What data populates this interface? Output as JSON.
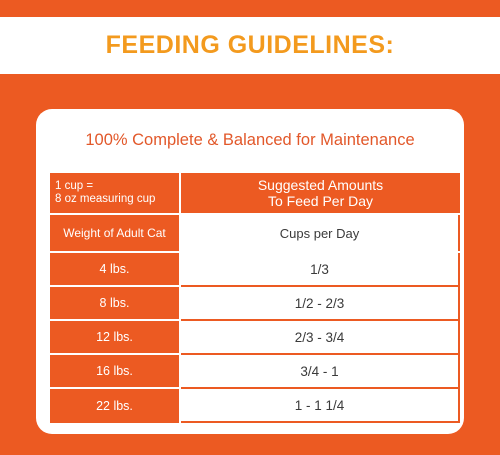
{
  "banner": {
    "title": "FEEDING GUIDELINES:"
  },
  "card": {
    "title": "100% Complete & Balanced for Maintenance"
  },
  "table": {
    "note_line1": "1 cup =",
    "note_line2": "8 oz measuring cup",
    "header_line1": "Suggested Amounts",
    "header_line2": "To Feed Per Day",
    "col_weight": "Weight of Adult Cat",
    "col_cups": "Cups per Day",
    "rows": [
      {
        "weight": "4 lbs.",
        "cups": "1/3"
      },
      {
        "weight": "8 lbs.",
        "cups": "1/2 - 2/3"
      },
      {
        "weight": "12 lbs.",
        "cups": "2/3 - 3/4"
      },
      {
        "weight": "16 lbs.",
        "cups": "3/4 - 1"
      },
      {
        "weight": "22 lbs.",
        "cups": "1 - 1 1/4"
      }
    ]
  },
  "colors": {
    "background": "#ec5a22",
    "title": "#f39a1e",
    "card_title": "#e2582a"
  }
}
